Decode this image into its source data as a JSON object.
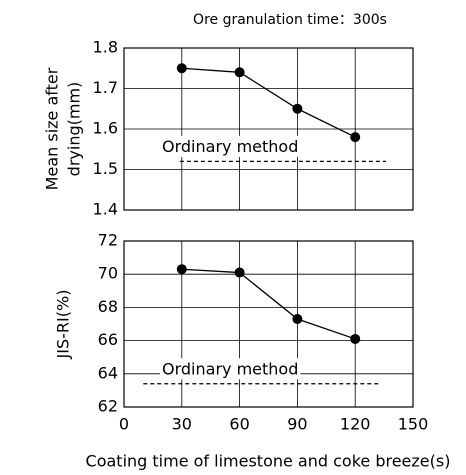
{
  "chart_data": [
    {
      "type": "line",
      "title": "Ore granulation time：300s",
      "ylabel": [
        "Mean size after",
        "drying(mm)"
      ],
      "x": [
        30,
        60,
        90,
        120
      ],
      "series": [
        {
          "color": "#000000",
          "values": [
            1.75,
            1.74,
            1.65,
            1.58
          ]
        }
      ],
      "ylim": [
        1.4,
        1.8
      ],
      "yticks": [
        1.4,
        1.5,
        1.6,
        1.7,
        1.8
      ],
      "grid": true,
      "reference": {
        "label": "Ordinary method",
        "value": 1.52,
        "x": [
          29,
          136
        ]
      }
    },
    {
      "type": "line",
      "ylabel": [
        "JIS-RI(%)"
      ],
      "xlabel": "Coating time of limestone and coke breeze(s)",
      "x": [
        30,
        60,
        90,
        120
      ],
      "series": [
        {
          "color": "#000000",
          "values": [
            70.3,
            70.1,
            67.3,
            66.1
          ]
        }
      ],
      "xlim": [
        0,
        150
      ],
      "xticks": [
        0,
        30,
        60,
        90,
        120,
        150
      ],
      "ylim": [
        62,
        72
      ],
      "yticks": [
        62,
        64,
        66,
        68,
        70,
        72
      ],
      "grid": true,
      "reference": {
        "label": "Ordinary method",
        "value": 63.4,
        "x": [
          10,
          133
        ]
      }
    }
  ]
}
